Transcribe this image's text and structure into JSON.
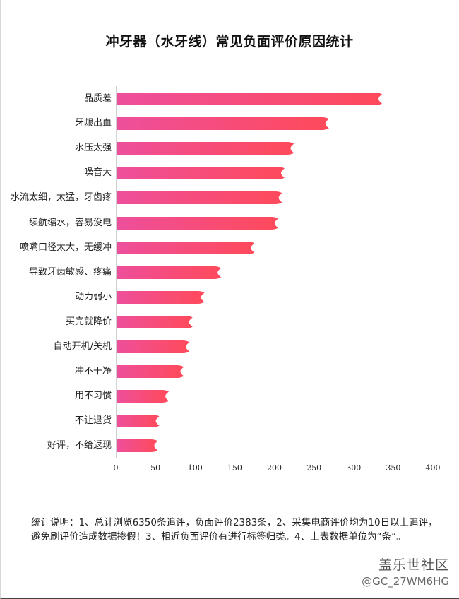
{
  "chart_data": {
    "type": "bar",
    "orientation": "horizontal",
    "title": "冲牙器（水牙线）常见负面评价原因统计",
    "xlabel": "",
    "ylabel": "",
    "xlim": [
      0,
      400
    ],
    "x_ticks": [
      0,
      50,
      100,
      150,
      200,
      250,
      300,
      350,
      400
    ],
    "grid": false,
    "legend": null,
    "categories": [
      "品质差",
      "牙龈出血",
      "水压太强",
      "噪音大",
      "水流太细，太猛，牙齿疼",
      "续航缩水，容易没电",
      "喷嘴口径太大，无缓冲",
      "导致牙齿敏感、疼痛",
      "动力弱小",
      "买完就降价",
      "自动开机/关机",
      "冲不干净",
      "用不习惯",
      "不让退货",
      "好评，不给返现"
    ],
    "values": [
      335,
      268,
      224,
      212,
      209,
      204,
      174,
      132,
      111,
      96,
      92,
      85,
      66,
      54,
      52
    ],
    "bar_colors": {
      "start": "#ee4f9c",
      "end": "#ff4a5a"
    }
  },
  "labels": {
    "title": "冲牙器（水牙线）常见负面评价原因统计",
    "ticks": [
      "0",
      "50",
      "100",
      "150",
      "200",
      "250",
      "300",
      "350",
      "400"
    ],
    "categories": [
      "品质差",
      "牙龈出血",
      "水压太强",
      "噪音大",
      "水流太细，太猛，牙齿疼",
      "续航缩水，容易没电",
      "喷嘴口径太大，无缓冲",
      "导致牙齿敏感、疼痛",
      "动力弱小",
      "买完就降价",
      "自动开机/关机",
      "冲不干净",
      "用不习惯",
      "不让退货",
      "好评，不给返现"
    ]
  },
  "note": "统计说明：1、总计浏览6350条追评，负面评价2383条，2、采集电商评价均为10日以上追评，避免刷评价造成数据掺假！3、相近负面评价有进行标签归类。4、上表数据单位为“条”。",
  "watermark": {
    "site": "盖乐世社区",
    "user": "@GC_27WM6HG"
  }
}
